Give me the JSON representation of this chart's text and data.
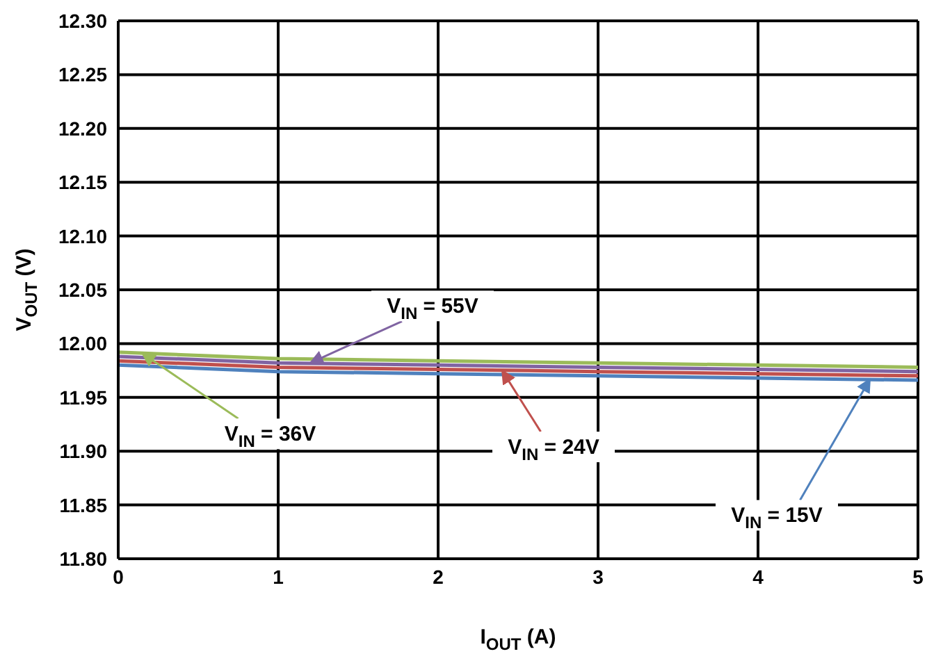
{
  "chart_data": {
    "type": "line",
    "xlabel": "I$_{OUT}$ (A)",
    "ylabel": "V$_{OUT}$ (V)",
    "x": [
      0,
      1,
      2,
      3,
      4,
      5
    ],
    "series": [
      {
        "color": "#4f81bd",
        "values": [
          11.98,
          11.974,
          11.972,
          11.97,
          11.968,
          11.966
        ]
      },
      {
        "color": "#c0504d",
        "values": [
          11.984,
          11.978,
          11.976,
          11.974,
          11.972,
          11.97
        ]
      },
      {
        "color": "#9bbb59",
        "values": [
          11.992,
          11.986,
          11.984,
          11.982,
          11.98,
          11.978
        ]
      },
      {
        "color": "#8064a2",
        "values": [
          11.988,
          11.982,
          11.98,
          11.978,
          11.976,
          11.974
        ]
      }
    ],
    "annotations": [
      {
        "text": "V$_{IN}$ = 15V",
        "x": 4.7,
        "y": 11.967
      },
      {
        "text": "V$_{IN}$ = 24V",
        "x": 2.4,
        "y": 11.975
      },
      {
        "text": "V$_{IN}$ = 36V",
        "x": 0.15,
        "y": 11.991
      },
      {
        "text": "V$_{IN}$ = 55V",
        "x": 1.2,
        "y": 11.982
      }
    ],
    "xlim": [
      0,
      5
    ],
    "xticks": [
      0,
      1,
      2,
      3,
      4,
      5
    ],
    "ylim": [
      11.8,
      12.3
    ],
    "yticks": [
      {
        "value": 11.8,
        "label": "11.80"
      },
      {
        "value": 11.85,
        "label": "11.85"
      },
      {
        "value": 11.9,
        "label": "11.90"
      },
      {
        "value": 11.95,
        "label": "11.95"
      },
      {
        "value": 12.0,
        "label": "12.00"
      },
      {
        "value": 12.05,
        "label": "12.05"
      },
      {
        "value": 12.1,
        "label": "12.10"
      },
      {
        "value": 12.15,
        "label": "12.15"
      },
      {
        "value": 12.2,
        "label": "12.20"
      },
      {
        "value": 12.25,
        "label": "12.25"
      },
      {
        "value": 12.3,
        "label": "12.30"
      }
    ],
    "grid": true,
    "marker": "none",
    "line_style": "solid"
  }
}
